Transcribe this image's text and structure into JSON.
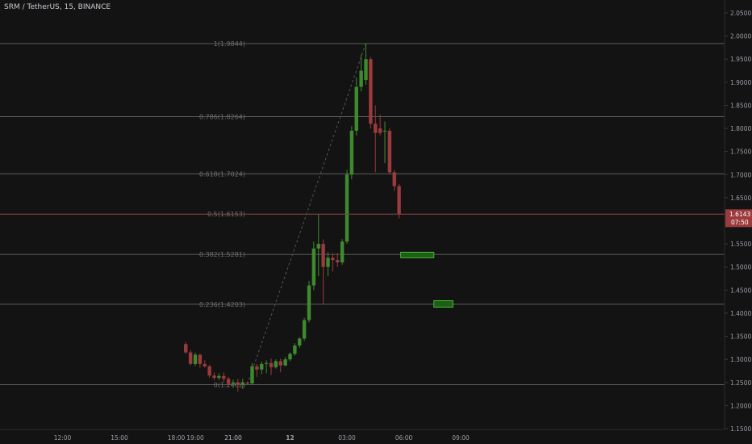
{
  "header": {
    "title": "SRM / TetherUS, 15, BINANCE"
  },
  "colors": {
    "background": "#131313",
    "up": "#3e8a2e",
    "down": "#9c3a3d",
    "fib_line": "#5d5d5d",
    "fib_label": "#6f6f6f",
    "axis_text": "#9a9ea6",
    "price_tag": "#9c3a3d",
    "box_fill": "#1c5f16",
    "box_border": "#4dbb34"
  },
  "chart_data": {
    "type": "candlestick",
    "title": "SRM / TetherUS, 15, BINANCE",
    "ylim": [
      1.15,
      2.06
    ],
    "y_ticks": [
      "2.0500",
      "2.0000",
      "1.9500",
      "1.9000",
      "1.8500",
      "1.8000",
      "1.7500",
      "1.7000",
      "1.6500",
      "1.6000",
      "1.5500",
      "1.5000",
      "1.4500",
      "1.4000",
      "1.3500",
      "1.3000",
      "1.2500",
      "1.2000",
      "1.1500"
    ],
    "x_ticks": [
      "19:00",
      "21:00",
      "12",
      "03:00",
      "06:00",
      "09:00",
      "12:00",
      "15:00",
      "18:00",
      "21:00"
    ],
    "last_price": {
      "value": "1.6143",
      "countdown": "07:50"
    },
    "fib_levels": [
      {
        "ratio": "1",
        "label": "1(1.9844)",
        "value": 1.9844
      },
      {
        "ratio": "0.786",
        "label": "0.786(1.8264)",
        "value": 1.8264
      },
      {
        "ratio": "0.618",
        "label": "0.618(1.7024)",
        "value": 1.7024
      },
      {
        "ratio": "0.5",
        "label": "0.5(1.6153)",
        "value": 1.6153
      },
      {
        "ratio": "0.382",
        "label": "0.382(1.5281)",
        "value": 1.5281
      },
      {
        "ratio": "0.236",
        "label": "0.236(1.4203)",
        "value": 1.4203
      },
      {
        "ratio": "0",
        "label": "0(1.2462)",
        "value": 1.2462
      }
    ],
    "candles": [
      {
        "t": "18:30",
        "o": 1.333,
        "h": 1.338,
        "l": 1.313,
        "c": 1.315
      },
      {
        "t": "18:45",
        "o": 1.315,
        "h": 1.32,
        "l": 1.287,
        "c": 1.29
      },
      {
        "t": "19:00",
        "o": 1.29,
        "h": 1.315,
        "l": 1.285,
        "c": 1.31
      },
      {
        "t": "19:15",
        "o": 1.31,
        "h": 1.312,
        "l": 1.282,
        "c": 1.29
      },
      {
        "t": "19:30",
        "o": 1.29,
        "h": 1.298,
        "l": 1.282,
        "c": 1.285
      },
      {
        "t": "19:45",
        "o": 1.285,
        "h": 1.288,
        "l": 1.26,
        "c": 1.265
      },
      {
        "t": "20:00",
        "o": 1.265,
        "h": 1.272,
        "l": 1.255,
        "c": 1.26
      },
      {
        "t": "20:15",
        "o": 1.26,
        "h": 1.27,
        "l": 1.255,
        "c": 1.264
      },
      {
        "t": "20:30",
        "o": 1.264,
        "h": 1.272,
        "l": 1.25,
        "c": 1.258
      },
      {
        "t": "20:45",
        "o": 1.258,
        "h": 1.262,
        "l": 1.24,
        "c": 1.247
      },
      {
        "t": "21:00",
        "o": 1.247,
        "h": 1.256,
        "l": 1.238,
        "c": 1.25
      },
      {
        "t": "21:15",
        "o": 1.25,
        "h": 1.258,
        "l": 1.23,
        "c": 1.245
      },
      {
        "t": "21:30",
        "o": 1.245,
        "h": 1.258,
        "l": 1.236,
        "c": 1.25
      },
      {
        "t": "21:45",
        "o": 1.25,
        "h": 1.252,
        "l": 1.246,
        "c": 1.248
      },
      {
        "t": "22:00",
        "o": 1.248,
        "h": 1.292,
        "l": 1.246,
        "c": 1.285
      },
      {
        "t": "22:15",
        "o": 1.285,
        "h": 1.29,
        "l": 1.262,
        "c": 1.278
      },
      {
        "t": "22:30",
        "o": 1.278,
        "h": 1.295,
        "l": 1.268,
        "c": 1.29
      },
      {
        "t": "22:45",
        "o": 1.29,
        "h": 1.298,
        "l": 1.27,
        "c": 1.292
      },
      {
        "t": "23:00",
        "o": 1.292,
        "h": 1.302,
        "l": 1.266,
        "c": 1.283
      },
      {
        "t": "23:15",
        "o": 1.283,
        "h": 1.3,
        "l": 1.28,
        "c": 1.296
      },
      {
        "t": "23:30",
        "o": 1.296,
        "h": 1.302,
        "l": 1.272,
        "c": 1.287
      },
      {
        "t": "23:45",
        "o": 1.287,
        "h": 1.305,
        "l": 1.285,
        "c": 1.3
      },
      {
        "t": "00:00",
        "o": 1.3,
        "h": 1.315,
        "l": 1.296,
        "c": 1.312
      },
      {
        "t": "00:15",
        "o": 1.312,
        "h": 1.335,
        "l": 1.308,
        "c": 1.33
      },
      {
        "t": "00:30",
        "o": 1.33,
        "h": 1.348,
        "l": 1.325,
        "c": 1.345
      },
      {
        "t": "00:45",
        "o": 1.345,
        "h": 1.39,
        "l": 1.34,
        "c": 1.385
      },
      {
        "t": "01:00",
        "o": 1.385,
        "h": 1.47,
        "l": 1.38,
        "c": 1.46
      },
      {
        "t": "01:15",
        "o": 1.46,
        "h": 1.555,
        "l": 1.45,
        "c": 1.54
      },
      {
        "t": "01:30",
        "o": 1.54,
        "h": 1.615,
        "l": 1.48,
        "c": 1.55
      },
      {
        "t": "01:45",
        "o": 1.55,
        "h": 1.56,
        "l": 1.42,
        "c": 1.5
      },
      {
        "t": "02:00",
        "o": 1.5,
        "h": 1.532,
        "l": 1.48,
        "c": 1.52
      },
      {
        "t": "02:15",
        "o": 1.52,
        "h": 1.53,
        "l": 1.49,
        "c": 1.515
      },
      {
        "t": "02:30",
        "o": 1.515,
        "h": 1.53,
        "l": 1.5,
        "c": 1.51
      },
      {
        "t": "02:45",
        "o": 1.51,
        "h": 1.56,
        "l": 1.505,
        "c": 1.555
      },
      {
        "t": "03:00",
        "o": 1.555,
        "h": 1.71,
        "l": 1.55,
        "c": 1.7
      },
      {
        "t": "03:15",
        "o": 1.7,
        "h": 1.805,
        "l": 1.69,
        "c": 1.795
      },
      {
        "t": "03:30",
        "o": 1.795,
        "h": 1.91,
        "l": 1.785,
        "c": 1.89
      },
      {
        "t": "03:45",
        "o": 1.89,
        "h": 1.96,
        "l": 1.88,
        "c": 1.925
      },
      {
        "t": "04:00",
        "o": 1.905,
        "h": 1.9844,
        "l": 1.895,
        "c": 1.95
      },
      {
        "t": "04:15",
        "o": 1.95,
        "h": 1.955,
        "l": 1.8,
        "c": 1.81
      },
      {
        "t": "04:30",
        "o": 1.81,
        "h": 1.85,
        "l": 1.705,
        "c": 1.79
      },
      {
        "t": "04:45",
        "o": 1.8,
        "h": 1.83,
        "l": 1.785,
        "c": 1.79
      },
      {
        "t": "05:00",
        "o": 1.795,
        "h": 1.815,
        "l": 1.725,
        "c": 1.795
      },
      {
        "t": "05:15",
        "o": 1.795,
        "h": 1.8,
        "l": 1.7,
        "c": 1.705
      },
      {
        "t": "05:30",
        "o": 1.705,
        "h": 1.71,
        "l": 1.665,
        "c": 1.675
      },
      {
        "t": "05:45",
        "o": 1.675,
        "h": 1.68,
        "l": 1.605,
        "c": 1.6143
      }
    ],
    "zones": [
      {
        "from": "05:45",
        "to": "07:30",
        "top": 1.532,
        "bottom": 1.52
      },
      {
        "from": "07:30",
        "to": "08:30",
        "top": 1.427,
        "bottom": 1.413
      }
    ],
    "trend_line": {
      "from": {
        "t": "21:45",
        "v": 1.2462
      },
      "to": {
        "t": "04:00",
        "v": 1.9844
      }
    }
  }
}
